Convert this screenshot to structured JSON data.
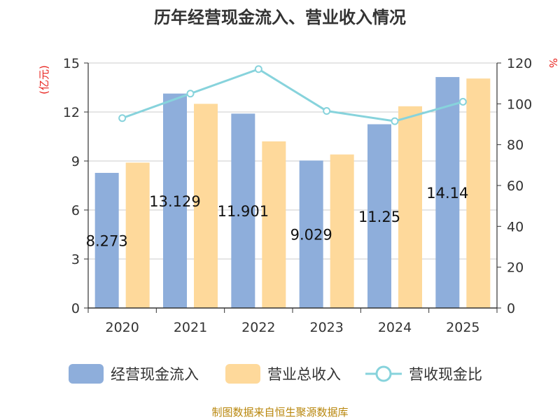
{
  "chart_data": {
    "type": "bar",
    "title": "历年经营现金流入、营业收入情况",
    "categories": [
      "2020",
      "2021",
      "2022",
      "2023",
      "2024",
      "2025"
    ],
    "series": [
      {
        "name": "经营现金流入",
        "type": "bar",
        "axis": "left",
        "color": "#8eaedb",
        "values": [
          8.273,
          13.129,
          11.901,
          9.029,
          11.25,
          14.14
        ],
        "labels": [
          "8.273",
          "13.129",
          "11.901",
          "9.029",
          "11.25",
          "14.14"
        ]
      },
      {
        "name": "营业总收入",
        "type": "bar",
        "axis": "left",
        "color": "#fed99b",
        "values": [
          8.9,
          12.5,
          10.2,
          9.4,
          12.35,
          14.05
        ]
      },
      {
        "name": "营收现金比",
        "type": "line",
        "axis": "right",
        "color": "#87d3dc",
        "values": [
          93,
          105,
          117,
          96.5,
          91.5,
          101
        ]
      }
    ],
    "y_left": {
      "unit": "(亿元)",
      "min": 0,
      "max": 15,
      "ticks": [
        "0",
        "3",
        "6",
        "9",
        "12",
        "15"
      ]
    },
    "y_right": {
      "unit": "%",
      "min": 0,
      "max": 120,
      "ticks": [
        "0",
        "20",
        "40",
        "60",
        "80",
        "100",
        "120"
      ]
    },
    "grid": true,
    "legend": "bottom",
    "source": "制图数据来自恒生聚源数据库"
  }
}
